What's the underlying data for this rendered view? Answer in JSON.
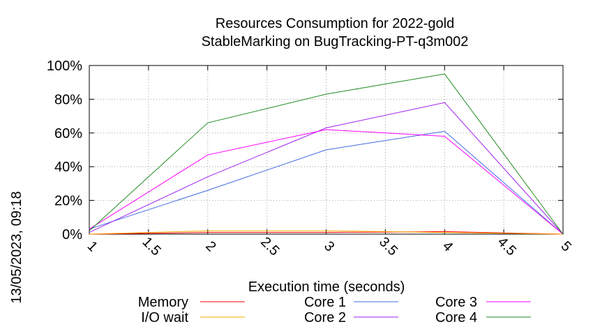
{
  "chart_data": {
    "type": "line",
    "title": [
      "Resources Consumption for 2022-gold",
      "StableMarking on BugTracking-PT-q3m002"
    ],
    "xlabel": "Execution time (seconds)",
    "ylabel": "",
    "side_label": "13/05/2023, 09:18",
    "xlim": [
      1,
      5
    ],
    "ylim": [
      0,
      100
    ],
    "xticks": [
      1,
      1.5,
      2,
      2.5,
      3,
      3.5,
      4,
      4.5,
      5
    ],
    "xtick_labels": [
      "1",
      "1.5",
      "2",
      "2.5",
      "3",
      "3.5",
      "4",
      "4.5",
      "5"
    ],
    "yticks": [
      0,
      20,
      40,
      60,
      80,
      100
    ],
    "ytick_labels": [
      "0%",
      "20%",
      "40%",
      "60%",
      "80%",
      "100%"
    ],
    "grid": true,
    "legend_position": "bottom",
    "x": [
      1,
      2,
      3,
      4,
      5
    ],
    "series": [
      {
        "name": "Memory",
        "color": "#ff0000",
        "values": [
          0,
          1,
          1,
          1.5,
          0
        ]
      },
      {
        "name": "I/O wait",
        "color": "#ffa500",
        "values": [
          0,
          2,
          2,
          1,
          0
        ]
      },
      {
        "name": "Core 1",
        "color": "#4169e1",
        "values": [
          3,
          26,
          50,
          61,
          0
        ]
      },
      {
        "name": "Core 2",
        "color": "#a020f0",
        "values": [
          1,
          34,
          63,
          78,
          0
        ]
      },
      {
        "name": "Core 3",
        "color": "#ff00ff",
        "values": [
          3,
          47,
          62,
          58,
          0
        ]
      },
      {
        "name": "Core 4",
        "color": "#228b22",
        "values": [
          2,
          66,
          83,
          95,
          0
        ]
      }
    ]
  }
}
